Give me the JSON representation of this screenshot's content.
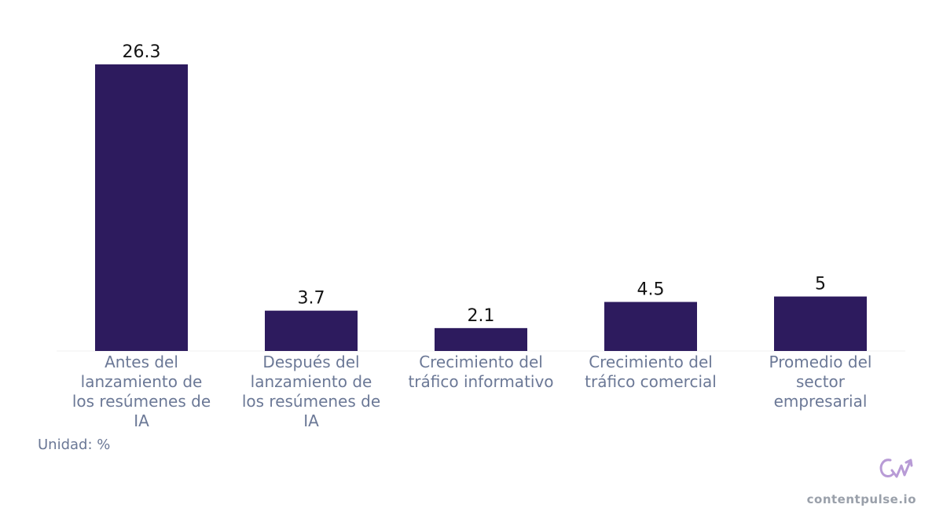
{
  "chart_data": {
    "type": "bar",
    "categories": [
      "Antes del lanzamiento de los resúmenes de IA",
      "Después del lanzamiento de los resúmenes de IA",
      "Crecimiento del tráfico informativo",
      "Crecimiento del tráfico comercial",
      "Promedio del sector empresarial"
    ],
    "category_lines": [
      [
        "Antes del",
        "lanzamiento de",
        "los resúmenes de",
        "IA"
      ],
      [
        "Después del",
        "lanzamiento de",
        "los resúmenes de",
        "IA"
      ],
      [
        "Crecimiento del",
        "tráfico informativo"
      ],
      [
        "Crecimiento del",
        "tráfico comercial"
      ],
      [
        "Promedio del",
        "sector",
        "empresarial"
      ]
    ],
    "values": [
      26.3,
      3.7,
      2.1,
      4.5,
      5
    ],
    "value_labels": [
      "26.3",
      "3.7",
      "2.1",
      "4.5",
      "5"
    ],
    "title": "",
    "xlabel": "",
    "ylabel": "",
    "ylim": [
      0,
      26.3
    ],
    "grid": false,
    "legend": "none",
    "bar_color": "#2d1b5e"
  },
  "unit_note": "Unidad: %",
  "brand": {
    "logo_icon": "contentpulse-logo-icon",
    "url": "contentpulse.io",
    "logo_color": "#b89bd6"
  }
}
